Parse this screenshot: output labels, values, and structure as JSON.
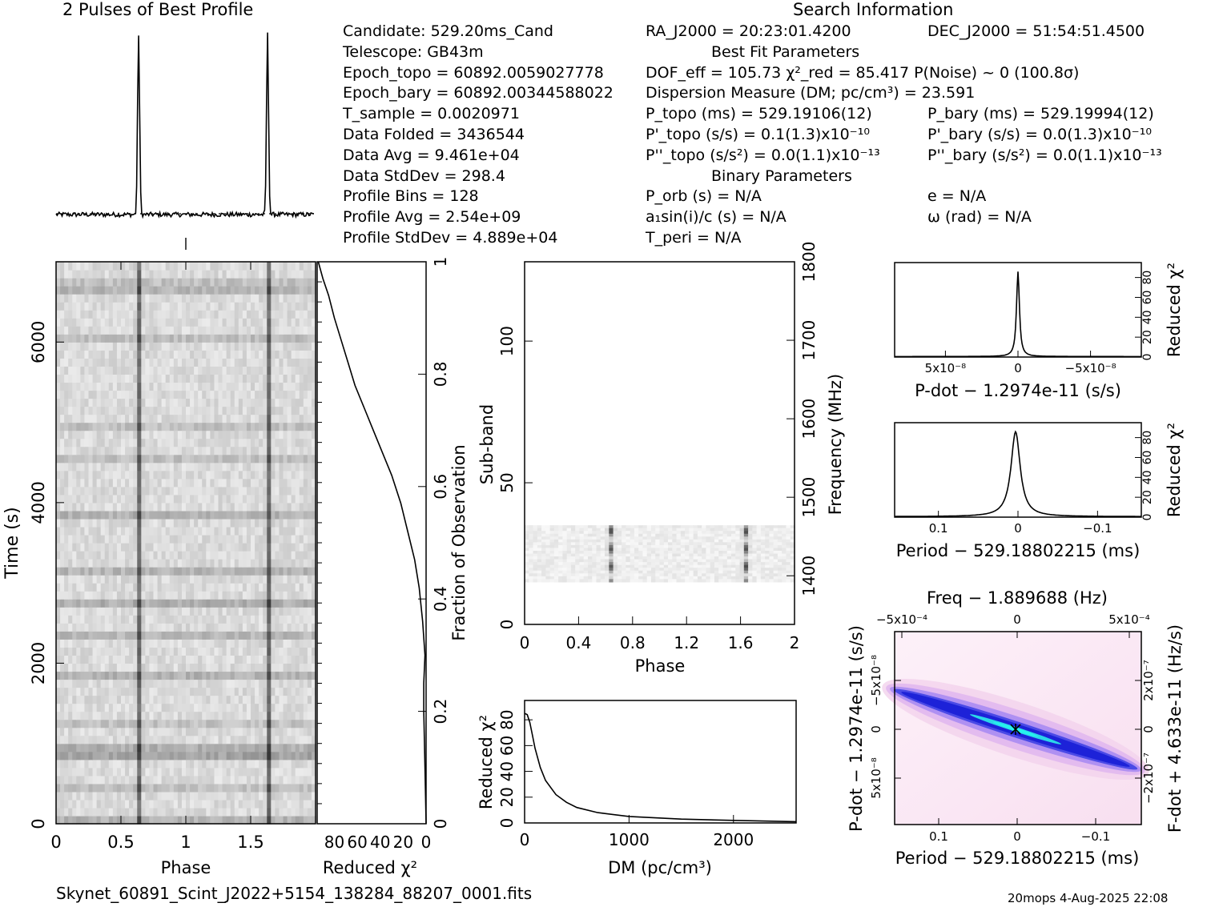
{
  "figure": {
    "profile_title": "2 Pulses of Best Profile",
    "search_title": "Search Information",
    "filename": "Skynet_60891_Scint_J2022+5154_138284_88207_0001.fits",
    "footer_right": "20mops   4-Aug-2025 22:08"
  },
  "info_left": [
    "Candidate:  529.20ms_Cand",
    "Telescope:  GB43m",
    "Epoch_topo = 60892.0059027778",
    "Epoch_bary = 60892.00344588022",
    "T_sample       =  0.0020971",
    "Data Folded    =  3436544",
    "Data Avg       =  9.461e+04",
    "Data StdDev    =  298.4",
    "Profile Bins   =  128",
    "Profile Avg    =  2.54e+09",
    "Profile StdDev =  4.889e+04"
  ],
  "info_mid": [
    "RA_J2000 = 20:23:01.4200",
    "Best Fit Parameters",
    "DOF_eff = 105.73  χ²_red = 85.417  P(Noise) ~ 0   (100.8σ)",
    "Dispersion Measure (DM; pc/cm³) = 23.591",
    "P_topo (ms) =  529.19106(12)",
    "P'_topo (s/s) =  0.1(1.3)x10⁻¹⁰",
    "P''_topo (s/s²) = 0.0(1.1)x10⁻¹³",
    "Binary Parameters",
    "P_orb (s) = N/A",
    "a₁sin(i)/c (s) = N/A",
    "T_peri = N/A"
  ],
  "info_right": [
    "DEC_J2000 = 51:54:51.4500",
    "",
    "",
    "",
    "P_bary (ms) =  529.19994(12)",
    "P'_bary (s/s) = 0.0(1.3)x10⁻¹⁰",
    "P''_bary (s/s²) = 0.0(1.1)x10⁻¹³",
    "",
    "e = N/A",
    "ω (rad) = N/A",
    ""
  ],
  "chart_data": [
    {
      "id": "profile",
      "type": "line",
      "title": "2 Pulses of Best Profile",
      "x_range": [
        0,
        2
      ],
      "pulse_phases": [
        0.64,
        1.64
      ],
      "pulse_height": 1.0,
      "baseline": 0.06
    },
    {
      "id": "time_phase",
      "type": "heatmap",
      "xlabel": "Phase",
      "ylabel": "Time (s)",
      "xlim": [
        0,
        2
      ],
      "ylim": [
        0,
        7000
      ],
      "x_ticks": [
        "0",
        "0.5",
        "1",
        "1.5"
      ],
      "y_ticks": [
        "0",
        "2000",
        "4000",
        "6000"
      ],
      "pulse_phases": [
        0.64,
        1.64
      ]
    },
    {
      "id": "reduced_chi2_time",
      "type": "line",
      "xlabel": "Reduced χ²",
      "ylabel": "Fraction of Observation",
      "x_ticks": [
        "80",
        "60",
        "40",
        "20",
        "0"
      ],
      "y_ticks": [
        "0",
        "0.2",
        "0.4",
        "0.6",
        "0.8",
        "1"
      ],
      "xlim": [
        95,
        0
      ],
      "ylim": [
        0,
        1
      ],
      "x": [
        0,
        0.5,
        1,
        2,
        2,
        1,
        3,
        6,
        10,
        16,
        22,
        30,
        38,
        46,
        54,
        62,
        68,
        74,
        80,
        85,
        90,
        94
      ],
      "y": [
        0,
        0.05,
        0.1,
        0.2,
        0.25,
        0.3,
        0.36,
        0.42,
        0.47,
        0.52,
        0.57,
        0.62,
        0.66,
        0.7,
        0.74,
        0.78,
        0.82,
        0.86,
        0.9,
        0.94,
        0.97,
        1.0
      ]
    },
    {
      "id": "subband_phase",
      "type": "heatmap",
      "xlabel": "Phase",
      "ylabel": "Sub-band",
      "y2label": "Frequency (MHz)",
      "xlim": [
        0,
        2
      ],
      "ylim": [
        0,
        128
      ],
      "x_ticks": [
        "0",
        "0.4",
        "0.8",
        "1.2",
        "1.6",
        "2"
      ],
      "y_ticks": [
        "0",
        "50",
        "100"
      ],
      "y2_ticks": [
        "1400",
        "1500",
        "1600",
        "1700",
        "1800"
      ],
      "band_range": [
        15,
        35
      ],
      "pulse_phases": [
        0.64,
        1.64
      ]
    },
    {
      "id": "dm_curve",
      "type": "line",
      "xlabel": "DM (pc/cm³)",
      "ylabel": "Reduced χ²",
      "xlim": [
        0,
        2600
      ],
      "ylim": [
        0,
        95
      ],
      "x_ticks": [
        "0",
        "1000",
        "2000"
      ],
      "y_ticks": [
        "0",
        "20",
        "40",
        "60",
        "80"
      ],
      "x": [
        0,
        25,
        50,
        75,
        100,
        150,
        200,
        300,
        400,
        500,
        700,
        1000,
        1500,
        2000,
        2600
      ],
      "y": [
        85,
        84,
        78,
        68,
        58,
        43,
        33,
        22,
        16,
        12,
        8,
        5,
        3,
        2,
        1
      ]
    },
    {
      "id": "pdot_curve",
      "type": "line",
      "xlabel": "P-dot − 1.2974e-11 (s/s)",
      "ylabel": "Reduced χ²",
      "xlim": [
        8.5e-08,
        -8.5e-08
      ],
      "ylim": [
        0,
        95
      ],
      "x_ticks": [
        "5x10⁻⁸",
        "0",
        "−5x10⁻⁸"
      ],
      "y_ticks": [
        "0",
        "20",
        "40",
        "60",
        "80"
      ],
      "peak": 85.4,
      "half_width": 1.2e-09
    },
    {
      "id": "period_curve",
      "type": "line",
      "xlabel": "Period − 529.18802215 (ms)",
      "ylabel": "Reduced χ²",
      "xlim": [
        0.155,
        -0.155
      ],
      "ylim": [
        0,
        95
      ],
      "x_ticks": [
        "0.1",
        "0",
        "−0.1"
      ],
      "y_ticks": [
        "0",
        "20",
        "40",
        "60",
        "80"
      ],
      "peak": 85.4,
      "peak_x": 0.003,
      "half_width": 0.007
    },
    {
      "id": "p_pdot_plane",
      "type": "heatmap",
      "title": "Freq − 1.889688 (Hz)",
      "xlabel": "Period − 529.18802215 (ms)",
      "ylabel": "P-dot − 1.2974e-11 (s/s)",
      "y2label": "F-dot + 4.633e-11 (Hz/s)",
      "x_ticks": [
        "0.1",
        "0",
        "−0.1"
      ],
      "top_ticks": [
        "−5x10⁻⁴",
        "0",
        "5x10⁻⁴"
      ],
      "y_ticks": [
        "−5x10⁻⁸",
        "0",
        "5x10⁻⁸"
      ],
      "y2_ticks": [
        "2x10⁻⁷",
        "0",
        "−2x10⁻⁷"
      ],
      "colors": {
        "bg": "#fbe7f4",
        "mid": "#8a70f0",
        "hot": "#1d22d8",
        "peak": "#26f2ee"
      }
    }
  ]
}
